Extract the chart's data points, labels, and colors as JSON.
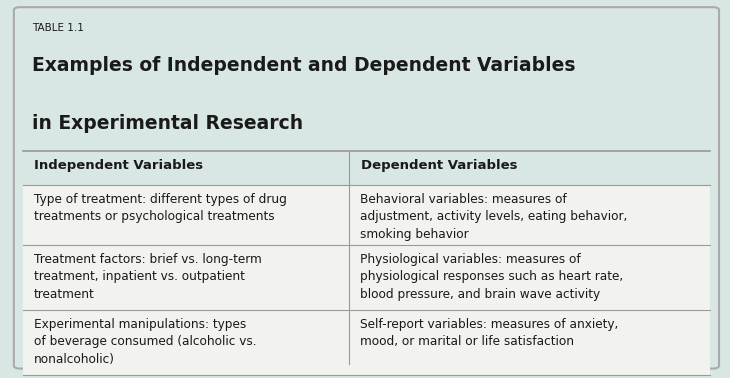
{
  "table_label": "TABLE 1.1",
  "title_line1": "Examples of Independent and Dependent Variables",
  "title_line2": "in Experimental Research",
  "col_headers": [
    "Independent Variables",
    "Dependent Variables"
  ],
  "rows": [
    [
      "Type of treatment: different types of drug\ntreatments or psychological treatments",
      "Behavioral variables: measures of\nadjustment, activity levels, eating behavior,\nsmoking behavior"
    ],
    [
      "Treatment factors: brief vs. long-term\ntreatment, inpatient vs. outpatient\ntreatment",
      "Physiological variables: measures of\nphysiological responses such as heart rate,\nblood pressure, and brain wave activity"
    ],
    [
      "Experimental manipulations: types\nof beverage consumed (alcoholic vs.\nnonalcoholic)",
      "Self-report variables: measures of anxiety,\nmood, or marital or life satisfaction"
    ]
  ],
  "bg_color": "#d8e6e4",
  "row_bg_color": "#f2f2ee",
  "border_color": "#999999",
  "text_color": "#1a1a1a",
  "outer_border_color": "#aaaaaa",
  "col_split": 0.475,
  "fig_width": 7.3,
  "fig_height": 3.78
}
